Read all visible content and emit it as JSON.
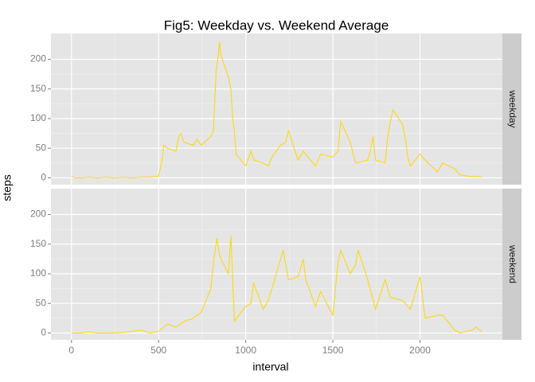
{
  "chart_data": {
    "type": "line",
    "title": "Fig5: Weekday vs. Weekend Average",
    "xlabel": "interval",
    "ylabel": "steps",
    "xlim": [
      -117.75,
      2472.75
    ],
    "xticks": [
      0,
      500,
      1000,
      1500,
      2000
    ],
    "ylim": [
      -11.5,
      243.7
    ],
    "yticks": [
      0,
      50,
      100,
      150,
      200
    ],
    "grid": true,
    "series": [
      {
        "name": "weekday",
        "color": "#ffd700",
        "x": [
          0,
          25,
          50,
          100,
          150,
          200,
          250,
          300,
          350,
          400,
          450,
          500,
          520,
          530,
          550,
          600,
          615,
          630,
          645,
          700,
          720,
          745,
          800,
          815,
          830,
          840,
          850,
          855,
          900,
          915,
          925,
          935,
          945,
          1000,
          1030,
          1045,
          1100,
          1130,
          1150,
          1200,
          1230,
          1245,
          1300,
          1330,
          1400,
          1430,
          1500,
          1530,
          1545,
          1600,
          1630,
          1700,
          1715,
          1730,
          1745,
          1800,
          1815,
          1830,
          1845,
          1900,
          1920,
          1930,
          1945,
          2000,
          2030,
          2100,
          2130,
          2200,
          2230,
          2300,
          2330,
          2355
        ],
        "values": [
          2,
          0,
          0,
          1,
          0,
          1,
          0,
          1,
          0,
          1,
          1,
          3,
          30,
          55,
          50,
          45,
          70,
          75,
          60,
          55,
          65,
          55,
          70,
          80,
          180,
          200,
          230,
          210,
          170,
          150,
          100,
          80,
          40,
          20,
          45,
          30,
          25,
          20,
          35,
          55,
          60,
          80,
          30,
          45,
          20,
          40,
          35,
          45,
          95,
          60,
          25,
          30,
          45,
          70,
          30,
          25,
          70,
          95,
          115,
          90,
          60,
          35,
          20,
          40,
          30,
          10,
          25,
          15,
          5,
          2,
          3,
          1
        ]
      },
      {
        "name": "weekend",
        "color": "#ffd700",
        "x": [
          0,
          50,
          100,
          150,
          200,
          300,
          400,
          450,
          500,
          550,
          600,
          650,
          700,
          745,
          800,
          815,
          835,
          850,
          900,
          915,
          935,
          1000,
          1030,
          1045,
          1100,
          1130,
          1200,
          1215,
          1245,
          1300,
          1330,
          1345,
          1400,
          1430,
          1500,
          1530,
          1545,
          1600,
          1630,
          1645,
          1700,
          1745,
          1800,
          1830,
          1900,
          1945,
          2000,
          2030,
          2100,
          2130,
          2200,
          2230,
          2300,
          2320,
          2355
        ],
        "values": [
          0,
          0,
          2,
          0,
          0,
          1,
          5,
          0,
          3,
          15,
          10,
          20,
          25,
          35,
          75,
          120,
          160,
          130,
          100,
          165,
          20,
          45,
          50,
          85,
          40,
          55,
          125,
          140,
          90,
          95,
          125,
          90,
          45,
          70,
          30,
          120,
          140,
          100,
          115,
          140,
          90,
          40,
          90,
          60,
          55,
          40,
          95,
          25,
          30,
          30,
          5,
          0,
          5,
          10,
          2
        ]
      }
    ]
  }
}
